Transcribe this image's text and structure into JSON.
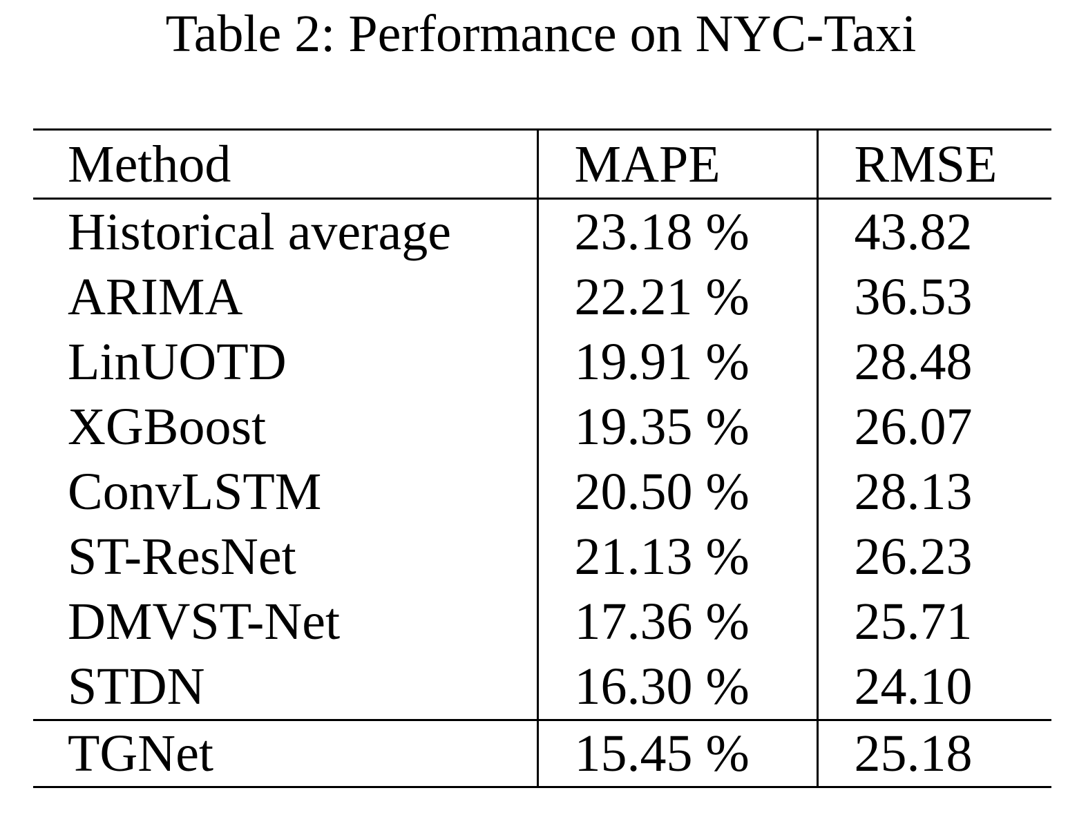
{
  "caption": "Table 2: Performance on NYC-Taxi",
  "table": {
    "headers": {
      "method": "Method",
      "mape": "MAPE",
      "rmse": "RMSE"
    },
    "rows": [
      {
        "method": "Historical average",
        "mape": "23.18 %",
        "rmse": "43.82"
      },
      {
        "method": "ARIMA",
        "mape": "22.21 %",
        "rmse": "36.53"
      },
      {
        "method": "LinUOTD",
        "mape": "19.91 %",
        "rmse": "28.48"
      },
      {
        "method": "XGBoost",
        "mape": "19.35 %",
        "rmse": "26.07"
      },
      {
        "method": "ConvLSTM",
        "mape": "20.50 %",
        "rmse": "28.13"
      },
      {
        "method": "ST-ResNet",
        "mape": "21.13 %",
        "rmse": "26.23"
      },
      {
        "method": "DMVST-Net",
        "mape": "17.36 %",
        "rmse": "25.71"
      },
      {
        "method": "STDN",
        "mape": "16.30 %",
        "rmse": "24.10"
      },
      {
        "method": "TGNet",
        "mape": "15.45 %",
        "rmse": "25.18"
      }
    ]
  }
}
